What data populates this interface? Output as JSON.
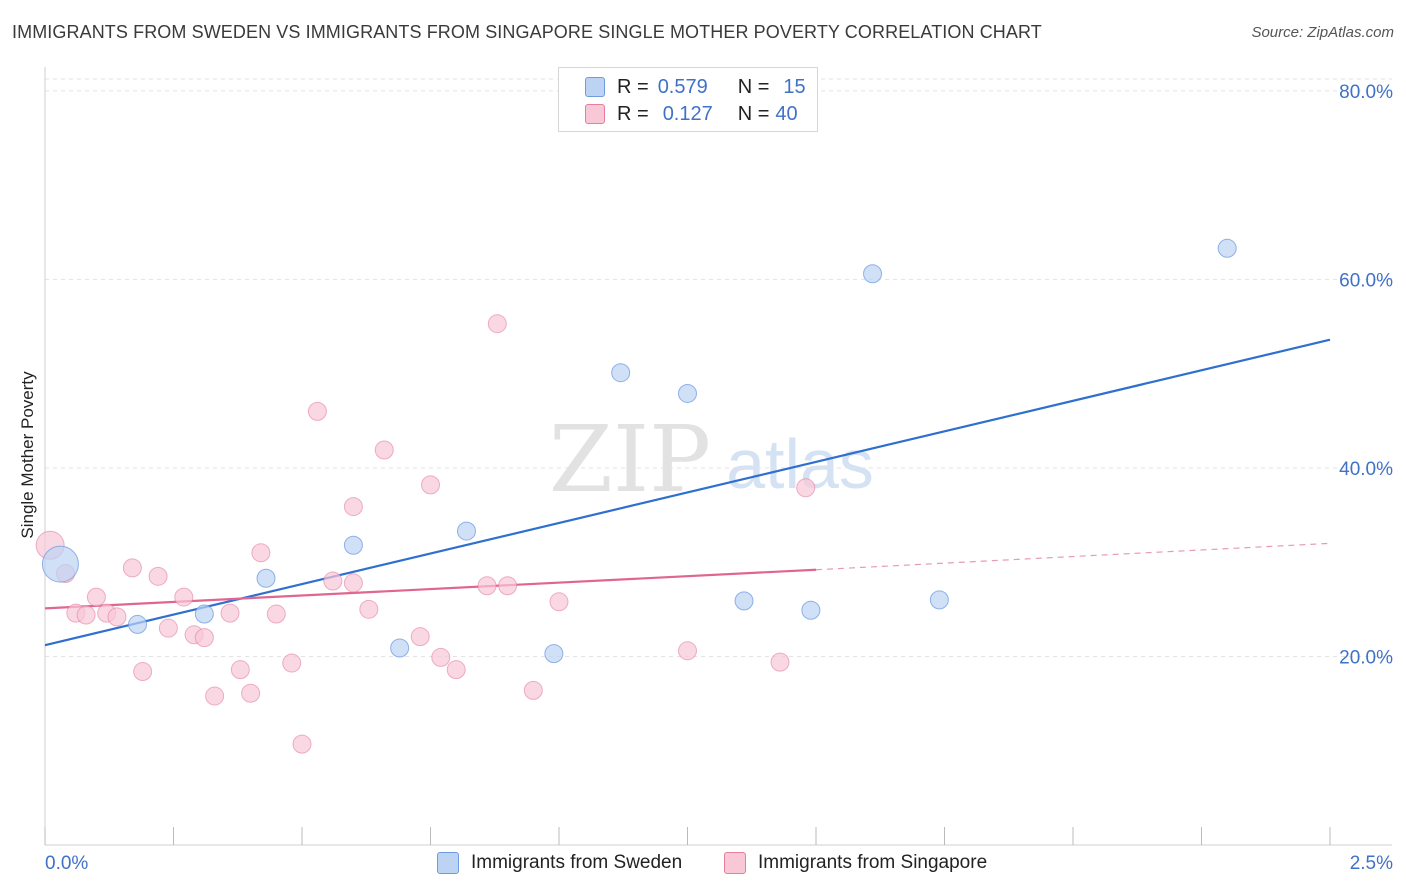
{
  "title": "IMMIGRANTS FROM SWEDEN VS IMMIGRANTS FROM SINGAPORE SINGLE MOTHER POVERTY CORRELATION CHART",
  "source": "Source: ZipAtlas.com",
  "watermark": {
    "zip": "ZIP",
    "atlas": "atlas"
  },
  "legend": {
    "sweden": {
      "r_label": "R =",
      "r_value": "0.579",
      "n_label": "N =",
      "n_value": "15"
    },
    "singapore": {
      "r_label": "R =",
      "r_value": "0.127",
      "n_label": "N =",
      "n_value": "40"
    }
  },
  "chart_data": {
    "type": "scatter",
    "title": "IMMIGRANTS FROM SWEDEN VS IMMIGRANTS FROM SINGAPORE SINGLE MOTHER POVERTY CORRELATION CHART",
    "xlabel": "",
    "ylabel": "Single Mother Poverty",
    "xlim": [
      0,
      2.5
    ],
    "ylim": [
      0,
      82
    ],
    "x_tick_labels": [
      "0.0%",
      "2.5%"
    ],
    "y_ticks": [
      20,
      40,
      60,
      80
    ],
    "y_tick_labels": [
      "20.0%",
      "40.0%",
      "60.0%",
      "80.0%"
    ],
    "grid": true,
    "legend_position": "top-center",
    "series": [
      {
        "name": "Immigrants from Sweden",
        "color": "#6f9be0",
        "fill": "#bcd3f3",
        "points": [
          [
            0.03,
            29.8
          ],
          [
            0.18,
            23.4
          ],
          [
            0.31,
            24.5
          ],
          [
            0.43,
            28.3
          ],
          [
            0.6,
            31.8
          ],
          [
            0.69,
            20.9
          ],
          [
            0.82,
            33.3
          ],
          [
            0.99,
            20.3
          ],
          [
            1.12,
            50.1
          ],
          [
            1.25,
            47.9
          ],
          [
            1.36,
            25.9
          ],
          [
            1.49,
            24.9
          ],
          [
            1.61,
            60.6
          ],
          [
            1.74,
            26.0
          ],
          [
            2.3,
            63.3
          ]
        ],
        "trend": {
          "x": [
            0.0,
            2.5
          ],
          "y": [
            21.2,
            53.6
          ]
        }
      },
      {
        "name": "Immigrants from Singapore",
        "color": "#e57ea1",
        "fill": "#f8c8d7",
        "points": [
          [
            0.01,
            31.8
          ],
          [
            0.04,
            28.8
          ],
          [
            0.06,
            24.6
          ],
          [
            0.08,
            24.4
          ],
          [
            0.1,
            26.3
          ],
          [
            0.12,
            24.6
          ],
          [
            0.14,
            24.2
          ],
          [
            0.17,
            29.4
          ],
          [
            0.19,
            18.4
          ],
          [
            0.22,
            28.5
          ],
          [
            0.24,
            23.0
          ],
          [
            0.27,
            26.3
          ],
          [
            0.29,
            22.3
          ],
          [
            0.31,
            22.0
          ],
          [
            0.33,
            15.8
          ],
          [
            0.36,
            24.6
          ],
          [
            0.38,
            18.6
          ],
          [
            0.4,
            16.1
          ],
          [
            0.42,
            31.0
          ],
          [
            0.45,
            24.5
          ],
          [
            0.48,
            19.3
          ],
          [
            0.5,
            10.7
          ],
          [
            0.53,
            46.0
          ],
          [
            0.56,
            28.0
          ],
          [
            0.6,
            35.9
          ],
          [
            0.6,
            27.8
          ],
          [
            0.63,
            25.0
          ],
          [
            0.66,
            41.9
          ],
          [
            0.73,
            22.1
          ],
          [
            0.75,
            38.2
          ],
          [
            0.77,
            19.9
          ],
          [
            0.8,
            18.6
          ],
          [
            0.86,
            27.5
          ],
          [
            0.88,
            55.3
          ],
          [
            0.9,
            27.5
          ],
          [
            0.95,
            16.4
          ],
          [
            1.0,
            25.8
          ],
          [
            1.25,
            20.6
          ],
          [
            1.43,
            19.4
          ],
          [
            1.48,
            37.9
          ]
        ],
        "trend": {
          "x": [
            0.0,
            1.5
          ],
          "y": [
            25.1,
            29.2
          ]
        },
        "trend_extension": {
          "x": [
            1.5,
            2.5
          ],
          "y": [
            29.2,
            32.0
          ]
        }
      }
    ]
  },
  "bottom_legend": {
    "sweden": "Immigrants from Sweden",
    "singapore": "Immigrants from Singapore"
  }
}
